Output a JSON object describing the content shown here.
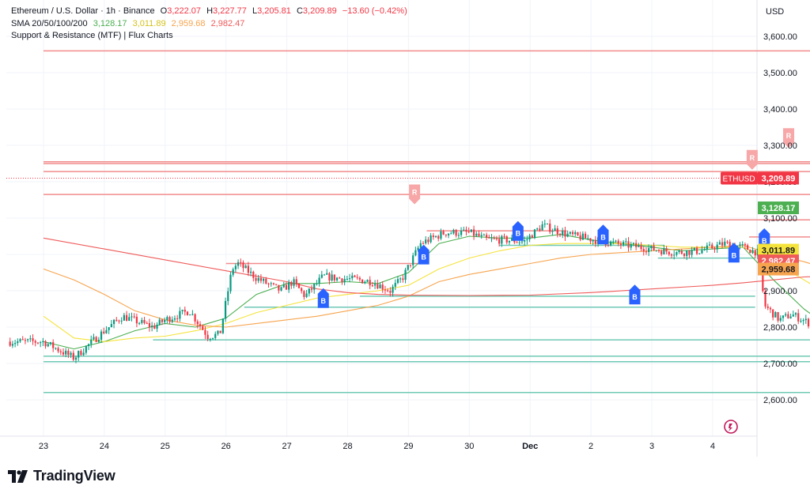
{
  "header": {
    "symbol": "Ethereum / U.S. Dollar · 1h · Binance",
    "open_label": "O",
    "open": "3,222.07",
    "high_label": "H",
    "high": "3,227.77",
    "low_label": "L",
    "low": "3,205.81",
    "close_label": "C",
    "close": "3,209.89",
    "change": "−13.60 (−0.42%)",
    "sma_name": "SMA 20/50/100/200",
    "sma20": "3,128.17",
    "sma50": "3,011.89",
    "sma100": "2,959.68",
    "sma200": "2,982.47",
    "indicator2": "Support & Resistance (MTF) | Flux Charts"
  },
  "currency": "USD",
  "brand": "TradingView",
  "colors": {
    "up": "#089981",
    "down": "#f23645",
    "sma20": "#4caf50",
    "sma50": "#f5e33b",
    "sma100": "#f7a44e",
    "sma200": "#f05a5a",
    "resistance": "#f28b8b",
    "support": "#6fc9b5",
    "buy_label": "#2962ff",
    "sell_label": "#f7a7a7"
  },
  "chart_data": {
    "type": "candlestick",
    "symbol": "ETHUSD",
    "interval": "1h",
    "ylim": [
      2580,
      3660
    ],
    "yticks": [
      2600,
      2700,
      2800,
      2900,
      3000,
      3100,
      3200,
      3300,
      3400,
      3500,
      3600
    ],
    "ytick_labels": [
      "2,600.00",
      "2,700.00",
      "2,800.00",
      "2,900.00",
      "3,000.00",
      "3,100.00",
      "3,200.00",
      "3,300.00",
      "3,400.00",
      "3,500.00",
      "3,600.00"
    ],
    "x_labels": [
      "23",
      "24",
      "25",
      "26",
      "27",
      "28",
      "29",
      "30",
      "Dec",
      "2",
      "3",
      "4"
    ],
    "price_path": [
      [
        0,
        2760
      ],
      [
        0.5,
        2715
      ],
      [
        1.0,
        2790
      ],
      [
        1.3,
        2830
      ],
      [
        1.8,
        2800
      ],
      [
        2.0,
        2820
      ],
      [
        2.4,
        2845
      ],
      [
        2.7,
        2775
      ],
      [
        2.9,
        2780
      ],
      [
        3.1,
        2960
      ],
      [
        3.2,
        2975
      ],
      [
        3.5,
        2935
      ],
      [
        3.9,
        2900
      ],
      [
        4.1,
        2925
      ],
      [
        4.3,
        2885
      ],
      [
        4.6,
        2940
      ],
      [
        4.8,
        2935
      ],
      [
        5.2,
        2930
      ],
      [
        5.4,
        2925
      ],
      [
        5.7,
        2900
      ],
      [
        5.9,
        2935
      ],
      [
        6.2,
        3030
      ],
      [
        6.6,
        3060
      ],
      [
        7.0,
        3060
      ],
      [
        7.3,
        3040
      ],
      [
        7.6,
        3040
      ],
      [
        7.9,
        3035
      ],
      [
        8.2,
        3080
      ],
      [
        8.6,
        3055
      ],
      [
        8.9,
        3045
      ],
      [
        9.4,
        3030
      ],
      [
        9.8,
        3020
      ],
      [
        10.0,
        3015
      ],
      [
        10.4,
        3005
      ],
      [
        10.8,
        3010
      ],
      [
        11.2,
        3030
      ],
      [
        11.5,
        3020
      ],
      [
        11.75,
        3005
      ],
      [
        11.85,
        2860
      ],
      [
        12.1,
        2820
      ],
      [
        12.3,
        2835
      ],
      [
        12.6,
        2810
      ],
      [
        12.78,
        2740
      ],
      [
        12.95,
        2765
      ],
      [
        13.2,
        2800
      ],
      [
        13.5,
        2800
      ],
      [
        13.9,
        2810
      ],
      [
        14.05,
        2860
      ],
      [
        14.15,
        3010
      ],
      [
        14.6,
        3025
      ],
      [
        15.0,
        3050
      ],
      [
        15.3,
        3070
      ],
      [
        15.6,
        3090
      ],
      [
        15.9,
        3140
      ],
      [
        16.15,
        3210
      ]
    ],
    "series": [
      {
        "name": "SMA 20",
        "color": "#4caf50",
        "last": 3128.17,
        "points": [
          [
            0,
            2760
          ],
          [
            0.5,
            2740
          ],
          [
            1.0,
            2760
          ],
          [
            1.5,
            2790
          ],
          [
            2.0,
            2810
          ],
          [
            2.5,
            2800
          ],
          [
            3.0,
            2825
          ],
          [
            3.5,
            2890
          ],
          [
            4.0,
            2920
          ],
          [
            4.5,
            2920
          ],
          [
            5.0,
            2925
          ],
          [
            5.5,
            2920
          ],
          [
            6.0,
            2950
          ],
          [
            6.5,
            3030
          ],
          [
            7.0,
            3050
          ],
          [
            7.5,
            3045
          ],
          [
            8.0,
            3045
          ],
          [
            8.5,
            3055
          ],
          [
            9.0,
            3040
          ],
          [
            9.5,
            3030
          ],
          [
            10.0,
            3020
          ],
          [
            10.5,
            3010
          ],
          [
            11.0,
            3015
          ],
          [
            11.5,
            3020
          ],
          [
            12.0,
            2930
          ],
          [
            12.5,
            2850
          ],
          [
            13.0,
            2790
          ],
          [
            13.5,
            2785
          ],
          [
            14.0,
            2810
          ],
          [
            14.5,
            2870
          ],
          [
            15.0,
            2955
          ],
          [
            15.5,
            3020
          ],
          [
            16.0,
            3070
          ],
          [
            16.35,
            3125
          ]
        ]
      },
      {
        "name": "SMA 50",
        "color": "#f5e33b",
        "last": 3011.89,
        "points": [
          [
            0,
            2830
          ],
          [
            0.5,
            2770
          ],
          [
            1.0,
            2760
          ],
          [
            1.5,
            2770
          ],
          [
            2.0,
            2775
          ],
          [
            2.5,
            2790
          ],
          [
            3.0,
            2810
          ],
          [
            3.5,
            2840
          ],
          [
            4.0,
            2860
          ],
          [
            4.5,
            2880
          ],
          [
            5.0,
            2890
          ],
          [
            5.5,
            2900
          ],
          [
            6.0,
            2915
          ],
          [
            6.5,
            2960
          ],
          [
            7.0,
            2990
          ],
          [
            7.5,
            3010
          ],
          [
            8.0,
            3025
          ],
          [
            8.5,
            3030
          ],
          [
            9.0,
            3030
          ],
          [
            9.5,
            3030
          ],
          [
            10.0,
            3025
          ],
          [
            10.5,
            3020
          ],
          [
            11.0,
            3020
          ],
          [
            11.5,
            3020
          ],
          [
            12.0,
            2980
          ],
          [
            12.5,
            2930
          ],
          [
            13.0,
            2880
          ],
          [
            13.5,
            2860
          ],
          [
            14.0,
            2845
          ],
          [
            14.5,
            2850
          ],
          [
            15.0,
            2880
          ],
          [
            15.5,
            2920
          ],
          [
            16.0,
            2965
          ],
          [
            16.35,
            3012
          ]
        ]
      },
      {
        "name": "SMA 100",
        "color": "#f7a44e",
        "last": 2959.68,
        "points": [
          [
            0,
            2960
          ],
          [
            0.5,
            2930
          ],
          [
            1.0,
            2890
          ],
          [
            1.5,
            2845
          ],
          [
            2.0,
            2820
          ],
          [
            2.5,
            2805
          ],
          [
            3.0,
            2800
          ],
          [
            3.5,
            2810
          ],
          [
            4.0,
            2820
          ],
          [
            4.5,
            2830
          ],
          [
            5.0,
            2845
          ],
          [
            5.5,
            2860
          ],
          [
            6.0,
            2885
          ],
          [
            6.5,
            2925
          ],
          [
            7.0,
            2945
          ],
          [
            7.5,
            2960
          ],
          [
            8.0,
            2975
          ],
          [
            8.5,
            2990
          ],
          [
            9.0,
            3000
          ],
          [
            9.5,
            3005
          ],
          [
            10.0,
            3010
          ],
          [
            10.5,
            3015
          ],
          [
            11.0,
            3020
          ],
          [
            11.5,
            3025
          ],
          [
            12.0,
            3000
          ],
          [
            12.5,
            2980
          ],
          [
            13.0,
            2955
          ],
          [
            13.5,
            2935
          ],
          [
            14.0,
            2915
          ],
          [
            14.5,
            2905
          ],
          [
            15.0,
            2910
          ],
          [
            15.5,
            2925
          ],
          [
            16.0,
            2945
          ],
          [
            16.35,
            2960
          ]
        ]
      },
      {
        "name": "SMA 200",
        "color": "#f05a5a",
        "last": 2982.47,
        "points": [
          [
            0,
            3045
          ],
          [
            1.0,
            3015
          ],
          [
            2.0,
            2985
          ],
          [
            3.0,
            2955
          ],
          [
            4.0,
            2925
          ],
          [
            4.5,
            2905
          ],
          [
            5.0,
            2895
          ],
          [
            5.5,
            2890
          ],
          [
            6.0,
            2888
          ],
          [
            7.0,
            2887
          ],
          [
            8.0,
            2888
          ],
          [
            9.0,
            2895
          ],
          [
            10.0,
            2905
          ],
          [
            11.0,
            2915
          ],
          [
            11.5,
            2922
          ],
          [
            12.0,
            2930
          ],
          [
            12.5,
            2938
          ],
          [
            13.0,
            2942
          ],
          [
            13.5,
            2945
          ],
          [
            14.0,
            2948
          ],
          [
            14.5,
            2950
          ],
          [
            15.0,
            2955
          ],
          [
            15.5,
            2962
          ],
          [
            16.0,
            2972
          ],
          [
            16.35,
            2982
          ]
        ]
      }
    ],
    "resistance_levels": [
      {
        "y": 3560,
        "x0": 0,
        "x1": 16.95
      },
      {
        "y": 3255,
        "x0": 0,
        "x1": 16.95
      },
      {
        "y": 3250,
        "x0": 0,
        "x1": 16.95
      },
      {
        "y": 3228,
        "x0": 0,
        "x1": 16.95
      },
      {
        "y": 3165,
        "x0": 0,
        "x1": 16.95
      },
      {
        "y": 3095,
        "x0": 8.6,
        "x1": 16.95
      },
      {
        "y": 3065,
        "x0": 6.3,
        "x1": 8.6
      },
      {
        "y": 3048,
        "x0": 11.6,
        "x1": 16.1
      },
      {
        "y": 2975,
        "x0": 3.0,
        "x1": 6.3
      }
    ],
    "support_levels": [
      {
        "y": 3025,
        "x0": 7.5,
        "x1": 10.2
      },
      {
        "y": 2990,
        "x0": 10.1,
        "x1": 11.7
      },
      {
        "y": 2885,
        "x0": 5.2,
        "x1": 11.7
      },
      {
        "y": 2855,
        "x0": 3.3,
        "x1": 11.7
      },
      {
        "y": 2765,
        "x0": 1.8,
        "x1": 12.6
      },
      {
        "y": 2720,
        "x0": 0,
        "x1": 16.95
      },
      {
        "y": 2705,
        "x0": 0,
        "x1": 16.95
      },
      {
        "y": 2620,
        "x0": 0,
        "x1": 16.95
      }
    ],
    "signals": [
      {
        "text": "R",
        "kind": "sell",
        "x": 6.1,
        "y": 3175
      },
      {
        "text": "R",
        "kind": "sell",
        "x": 11.65,
        "y": 3270
      },
      {
        "text": "R",
        "kind": "sell",
        "x": 12.25,
        "y": 3330
      },
      {
        "text": "B",
        "kind": "buy",
        "x": 4.6,
        "y": 2870
      },
      {
        "text": "B",
        "kind": "buy",
        "x": 6.25,
        "y": 2990
      },
      {
        "text": "B",
        "kind": "buy",
        "x": 7.8,
        "y": 3055
      },
      {
        "text": "B",
        "kind": "buy",
        "x": 9.2,
        "y": 3045
      },
      {
        "text": "B",
        "kind": "buy",
        "x": 9.72,
        "y": 2880
      },
      {
        "text": "B",
        "kind": "buy",
        "x": 11.35,
        "y": 2995
      },
      {
        "text": "B",
        "kind": "buy",
        "x": 11.85,
        "y": 3035
      }
    ],
    "price_tags": [
      {
        "label": "ETHUSD",
        "value": "3,209.89",
        "y": 3209.89,
        "bg": "#f23645",
        "fg": "#ffffff"
      },
      {
        "value": "3,128.17",
        "y": 3128.17,
        "bg": "#4caf50",
        "fg": "#ffffff"
      },
      {
        "value": "3,011.89",
        "y": 3011.89,
        "bg": "#f5e33b",
        "fg": "#131722"
      },
      {
        "value": "2,982.47",
        "y": 2982.47,
        "bg": "#f05a5a",
        "fg": "#ffffff"
      },
      {
        "value": "2,959.68",
        "y": 2959.68,
        "bg": "#f7a44e",
        "fg": "#131722"
      }
    ]
  }
}
